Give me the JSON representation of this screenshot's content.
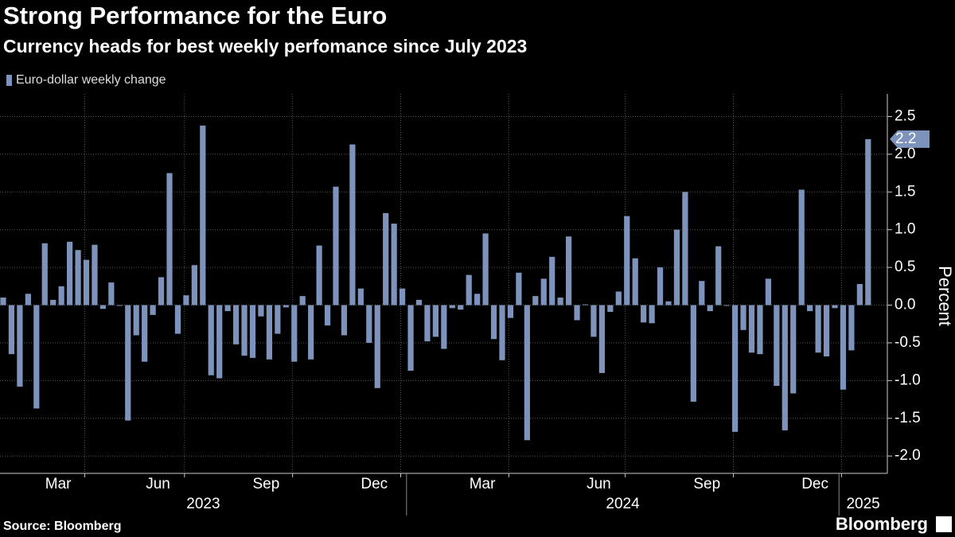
{
  "chart_data": {
    "type": "bar",
    "title": "Strong Performance for the Euro",
    "subtitle": "Currency heads for best weekly perfomance since July 2023",
    "legend": "Euro-dollar weekly change",
    "ylabel": "Percent",
    "source": "Source: Bloomberg",
    "brand": "Bloomberg",
    "color": "#7d93bb",
    "grid": true,
    "ylim": [
      -2.23,
      2.8
    ],
    "yticks": [
      {
        "value": -2,
        "label": "-2.0"
      },
      -1.5,
      {
        "value": -1,
        "label": "-1.0"
      },
      -0.5,
      {
        "value": 0,
        "label": "0.0"
      },
      0.5,
      {
        "value": 1,
        "label": "1.0"
      },
      1.5,
      {
        "value": 2,
        "label": "2.0"
      },
      2.5
    ],
    "categories": [
      null,
      null,
      null,
      null,
      null,
      null,
      null,
      "Mar",
      null,
      null,
      null,
      null,
      null,
      null,
      null,
      null,
      null,
      null,
      null,
      "Jun",
      null,
      null,
      null,
      null,
      null,
      null,
      null,
      null,
      null,
      null,
      null,
      null,
      "Sep",
      null,
      null,
      null,
      null,
      null,
      null,
      null,
      null,
      null,
      null,
      null,
      null,
      "Dec",
      null,
      null,
      null,
      null,
      null,
      null,
      null,
      null,
      null,
      null,
      null,
      null,
      "Mar",
      null,
      null,
      null,
      null,
      null,
      null,
      null,
      null,
      null,
      null,
      null,
      null,
      null,
      "Jun",
      null,
      null,
      null,
      null,
      null,
      null,
      null,
      null,
      null,
      null,
      null,
      null,
      "Sep",
      null,
      null,
      null,
      null,
      null,
      null,
      null,
      null,
      null,
      null,
      null,
      null,
      "Dec",
      null,
      null,
      null,
      null,
      null,
      null
    ],
    "years": [
      "2023",
      null,
      null,
      null,
      null,
      null,
      null,
      null,
      null,
      null,
      null,
      null,
      null,
      null,
      null,
      null,
      null,
      null,
      null,
      null,
      null,
      null,
      null,
      null,
      null,
      null,
      null,
      null,
      null,
      null,
      null,
      null,
      null,
      null,
      null,
      null,
      null,
      null,
      null,
      null,
      null,
      null,
      null,
      null,
      null,
      null,
      null,
      null,
      null,
      "2024",
      null,
      null,
      null,
      null,
      null,
      null,
      null,
      null,
      null,
      null,
      null,
      null,
      null,
      null,
      null,
      null,
      null,
      null,
      null,
      null,
      null,
      null,
      null,
      null,
      null,
      null,
      null,
      null,
      null,
      null,
      null,
      null,
      null,
      null,
      null,
      null,
      null,
      null,
      null,
      null,
      null,
      null,
      null,
      null,
      null,
      null,
      null,
      null,
      null,
      null,
      null,
      "2025",
      null,
      null,
      null
    ],
    "values": [
      0.1,
      -0.65,
      -1.08,
      0.15,
      -1.37,
      0.82,
      0.07,
      0.25,
      0.84,
      0.73,
      0.6,
      0.8,
      -0.05,
      0.3,
      -0.01,
      -1.53,
      -0.4,
      -0.75,
      -0.13,
      0.37,
      1.75,
      -0.38,
      0.13,
      0.53,
      2.38,
      -0.93,
      -0.97,
      -0.08,
      -0.52,
      -0.67,
      -0.7,
      -0.15,
      -0.72,
      -0.38,
      -0.03,
      -0.75,
      0.12,
      -0.72,
      0.79,
      -0.27,
      1.57,
      -0.4,
      2.13,
      0.22,
      -0.5,
      -1.1,
      1.22,
      1.08,
      0.22,
      -0.87,
      0.07,
      -0.48,
      -0.42,
      -0.58,
      -0.04,
      -0.06,
      0.4,
      0.15,
      0.95,
      -0.45,
      -0.73,
      -0.17,
      0.43,
      -1.79,
      0.12,
      0.35,
      0.64,
      0.1,
      0.91,
      -0.2,
      0.01,
      -0.42,
      -0.9,
      -0.09,
      0.18,
      1.18,
      0.62,
      -0.23,
      -0.24,
      0.5,
      0.05,
      1.0,
      1.5,
      -1.28,
      0.32,
      -0.08,
      0.78,
      -0.01,
      -1.68,
      -0.33,
      -0.63,
      -0.65,
      0.35,
      -1.07,
      -1.66,
      -1.17,
      1.53,
      -0.08,
      -0.63,
      -0.68,
      -0.04,
      -1.12,
      -0.6,
      0.28,
      2.2
    ]
  }
}
